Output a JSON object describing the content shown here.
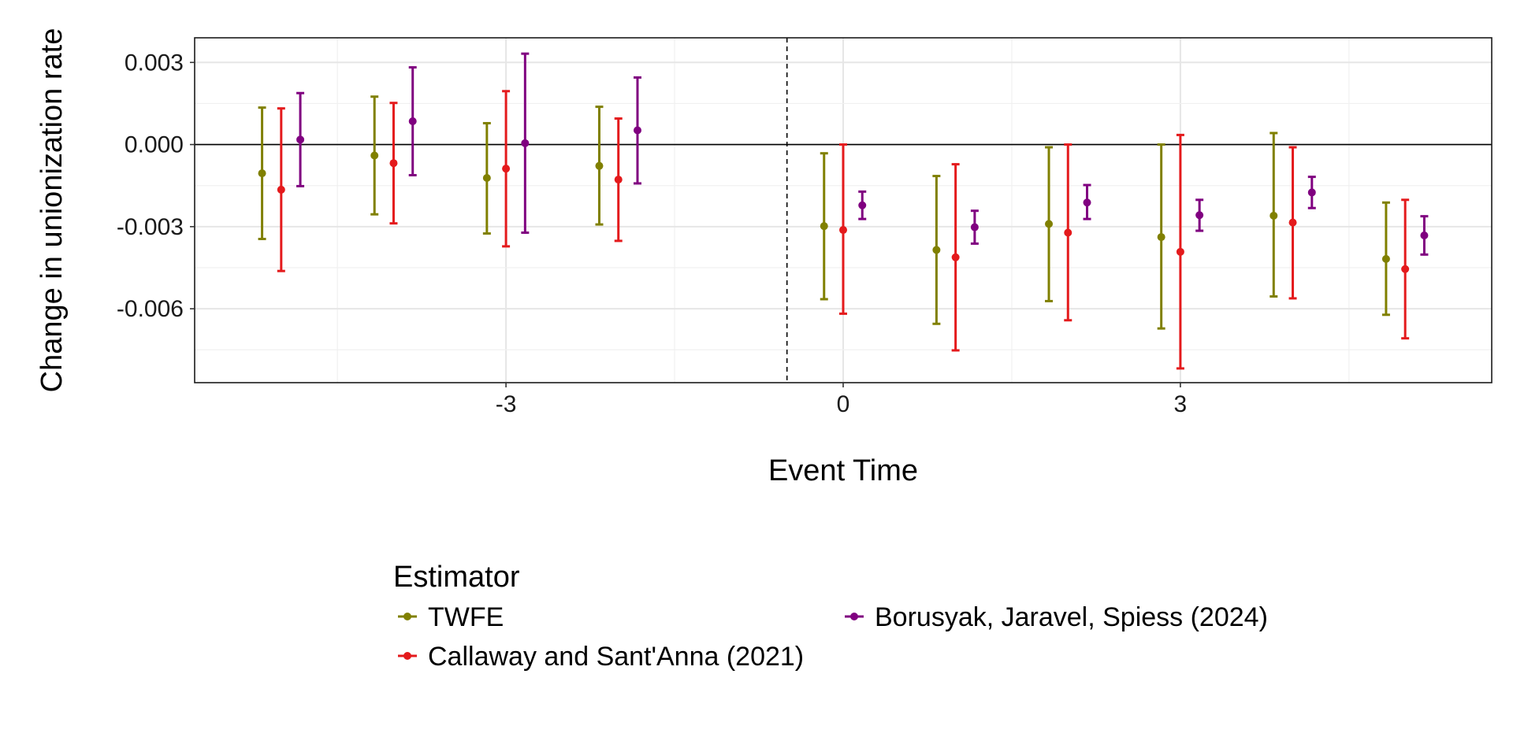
{
  "chart_data": {
    "type": "errorbar",
    "title": "",
    "xlabel": "Event Time",
    "ylabel": "Change in unionization rate",
    "x_ticks": [
      -3,
      0,
      3
    ],
    "y_ticks": [
      0.003,
      0.0,
      -0.003,
      -0.006
    ],
    "y_tick_labels": [
      "0.003",
      "0.000",
      "-0.003",
      "-0.006"
    ],
    "xlim": [
      -5.77,
      5.77
    ],
    "ylim": [
      -0.0087,
      0.0039
    ],
    "reference_line_y": 0,
    "treatment_line_x": -0.5,
    "grid": true,
    "legend": {
      "title": "Estimator",
      "position": "bottom"
    },
    "series": [
      {
        "name": "TWFE",
        "color": "#808000",
        "x_offset": -0.17,
        "points": [
          {
            "x": -5,
            "y": -0.00105,
            "lo": -0.00345,
            "hi": 0.00135
          },
          {
            "x": -4,
            "y": -0.0004,
            "lo": -0.00255,
            "hi": 0.00175
          },
          {
            "x": -3,
            "y": -0.00122,
            "lo": -0.00325,
            "hi": 0.00078
          },
          {
            "x": -2,
            "y": -0.00078,
            "lo": -0.00292,
            "hi": 0.00138
          },
          {
            "x": 0,
            "y": -0.00298,
            "lo": -0.00565,
            "hi": -0.00032
          },
          {
            "x": 1,
            "y": -0.00385,
            "lo": -0.00655,
            "hi": -0.00115
          },
          {
            "x": 2,
            "y": -0.0029,
            "lo": -0.00572,
            "hi": -0.0001
          },
          {
            "x": 3,
            "y": -0.00338,
            "lo": -0.00672,
            "hi": 0.0
          },
          {
            "x": 4,
            "y": -0.0026,
            "lo": -0.00555,
            "hi": 0.00042
          },
          {
            "x": 5,
            "y": -0.00418,
            "lo": -0.00622,
            "hi": -0.00212
          }
        ]
      },
      {
        "name": "Callaway and Sant'Anna (2021)",
        "color": "#e41a1c",
        "x_offset": 0.0,
        "points": [
          {
            "x": -5,
            "y": -0.00165,
            "lo": -0.00462,
            "hi": 0.00132
          },
          {
            "x": -4,
            "y": -0.00068,
            "lo": -0.00288,
            "hi": 0.00152
          },
          {
            "x": -3,
            "y": -0.00088,
            "lo": -0.00372,
            "hi": 0.00195
          },
          {
            "x": -2,
            "y": -0.00128,
            "lo": -0.00352,
            "hi": 0.00095
          },
          {
            "x": 0,
            "y": -0.00312,
            "lo": -0.00618,
            "hi": 0.0
          },
          {
            "x": 1,
            "y": -0.00412,
            "lo": -0.00752,
            "hi": -0.00072
          },
          {
            "x": 2,
            "y": -0.00322,
            "lo": -0.00642,
            "hi": 0.0
          },
          {
            "x": 3,
            "y": -0.00392,
            "lo": -0.00818,
            "hi": 0.00035
          },
          {
            "x": 4,
            "y": -0.00285,
            "lo": -0.00562,
            "hi": -0.0001
          },
          {
            "x": 5,
            "y": -0.00455,
            "lo": -0.00708,
            "hi": -0.00202
          }
        ]
      },
      {
        "name": "Borusyak, Jaravel, Spiess (2024)",
        "color": "#800080",
        "x_offset": 0.17,
        "points": [
          {
            "x": -5,
            "y": 0.00018,
            "lo": -0.00152,
            "hi": 0.00188
          },
          {
            "x": -4,
            "y": 0.00085,
            "lo": -0.00112,
            "hi": 0.00282
          },
          {
            "x": -3,
            "y": 5e-05,
            "lo": -0.00322,
            "hi": 0.00332
          },
          {
            "x": -2,
            "y": 0.00052,
            "lo": -0.00142,
            "hi": 0.00245
          },
          {
            "x": 0,
            "y": -0.00222,
            "lo": -0.00272,
            "hi": -0.00172
          },
          {
            "x": 1,
            "y": -0.00302,
            "lo": -0.00362,
            "hi": -0.00242
          },
          {
            "x": 2,
            "y": -0.00212,
            "lo": -0.00272,
            "hi": -0.00148
          },
          {
            "x": 3,
            "y": -0.00258,
            "lo": -0.00315,
            "hi": -0.00202
          },
          {
            "x": 4,
            "y": -0.00175,
            "lo": -0.00232,
            "hi": -0.00118
          },
          {
            "x": 5,
            "y": -0.00332,
            "lo": -0.00402,
            "hi": -0.00262
          }
        ]
      }
    ]
  }
}
